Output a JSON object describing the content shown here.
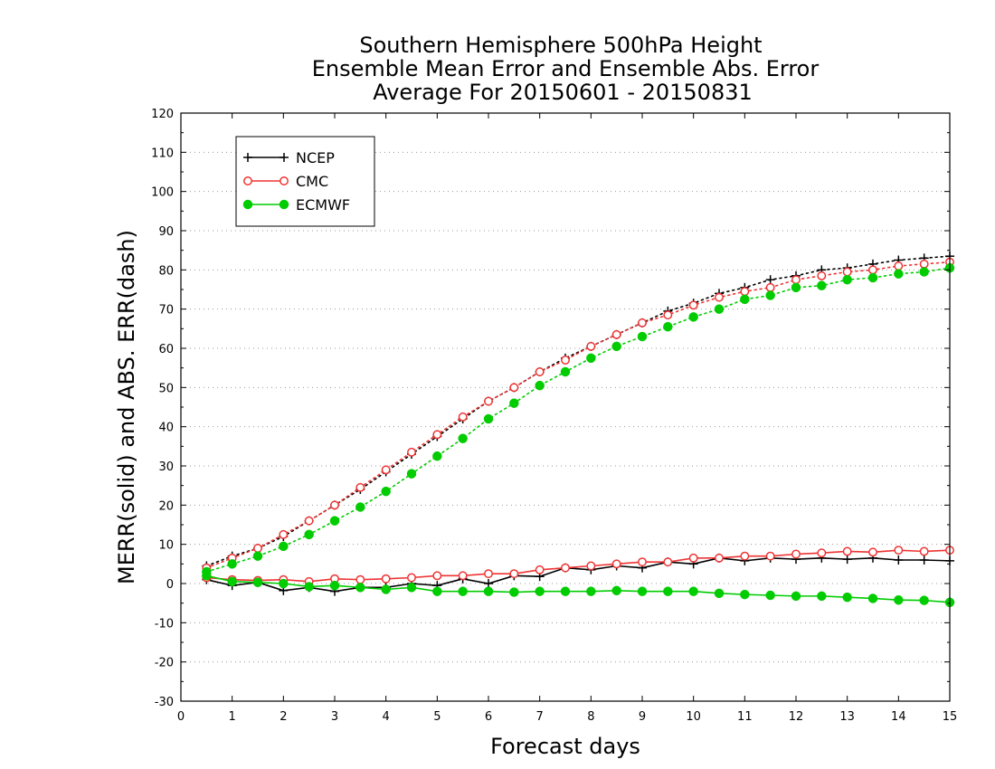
{
  "chart_data": {
    "type": "line",
    "title_lines": [
      "Southern Hemisphere 500hPa Height",
      "Ensemble Mean Error and Ensemble Abs. Error",
      "Average For 20150601 - 20150831"
    ],
    "xlabel": "Forecast days",
    "ylabel": "MERR(solid) and ABS. ERR(dash)",
    "xlim": [
      0,
      15
    ],
    "ylim": [
      -30,
      120
    ],
    "x_ticks": [
      "0",
      "1",
      "2",
      "3",
      "4",
      "5",
      "6",
      "7",
      "8",
      "9",
      "10",
      "11",
      "12",
      "13",
      "14",
      "15"
    ],
    "y_ticks": [
      "-30",
      "-20",
      "-10",
      "0",
      "10",
      "20",
      "30",
      "40",
      "50",
      "60",
      "70",
      "80",
      "90",
      "100",
      "110",
      "120"
    ],
    "grid": "horizontal dotted",
    "legend_position": "top-left",
    "x": [
      0.5,
      1,
      1.5,
      2,
      2.5,
      3,
      3.5,
      4,
      4.5,
      5,
      5.5,
      6,
      6.5,
      7,
      7.5,
      8,
      8.5,
      9,
      9.5,
      10,
      10.5,
      11,
      11.5,
      12,
      12.5,
      13,
      13.5,
      14,
      14.5,
      15
    ],
    "series": [
      {
        "name": "NCEP",
        "color": "#000000",
        "marker": "plus",
        "merr": [
          1.0,
          -0.5,
          0.3,
          -1.8,
          -1.0,
          -2.0,
          -1.0,
          -1.0,
          0.0,
          -0.5,
          1.2,
          0.0,
          2.0,
          1.8,
          4.0,
          3.5,
          4.5,
          4.0,
          5.5,
          5.0,
          6.5,
          5.8,
          6.5,
          6.2,
          6.5,
          6.2,
          6.5,
          6.0,
          6.0,
          5.8
        ],
        "abs_err": [
          4.5,
          7.0,
          9.0,
          12.0,
          16.0,
          20.0,
          24.0,
          28.5,
          33.0,
          37.5,
          42.0,
          46.5,
          50.0,
          54.0,
          57.5,
          60.5,
          63.5,
          66.5,
          69.5,
          71.5,
          74.0,
          75.5,
          77.5,
          78.5,
          80.0,
          80.5,
          81.5,
          82.5,
          83.0,
          83.5
        ]
      },
      {
        "name": "CMC",
        "color": "#ee3333",
        "marker": "open-circle",
        "merr": [
          1.5,
          1.0,
          0.8,
          1.0,
          0.5,
          1.2,
          1.0,
          1.2,
          1.5,
          2.0,
          2.0,
          2.5,
          2.5,
          3.5,
          4.0,
          4.5,
          5.0,
          5.5,
          5.5,
          6.5,
          6.5,
          7.0,
          7.0,
          7.5,
          7.8,
          8.2,
          8.0,
          8.5,
          8.2,
          8.5
        ],
        "abs_err": [
          4.0,
          6.5,
          9.0,
          12.5,
          16.0,
          20.0,
          24.5,
          29.0,
          33.5,
          38.0,
          42.5,
          46.5,
          50.0,
          54.0,
          57.0,
          60.5,
          63.5,
          66.5,
          68.5,
          71.0,
          73.0,
          74.5,
          75.5,
          77.5,
          78.5,
          79.5,
          80.0,
          81.0,
          81.5,
          82.0
        ]
      },
      {
        "name": "ECMWF",
        "color": "#00cc00",
        "marker": "filled-circle",
        "merr": [
          2.0,
          0.5,
          0.3,
          0.0,
          -0.8,
          -0.5,
          -1.0,
          -1.5,
          -1.0,
          -2.0,
          -2.0,
          -2.0,
          -2.2,
          -2.0,
          -2.0,
          -2.0,
          -1.8,
          -2.0,
          -2.0,
          -2.0,
          -2.5,
          -2.8,
          -3.0,
          -3.2,
          -3.2,
          -3.5,
          -3.8,
          -4.2,
          -4.3,
          -4.8
        ],
        "abs_err": [
          3.0,
          5.0,
          7.0,
          9.5,
          12.5,
          16.0,
          19.5,
          23.5,
          28.0,
          32.5,
          37.0,
          42.0,
          46.0,
          50.5,
          54.0,
          57.5,
          60.5,
          63.0,
          65.5,
          68.0,
          70.0,
          72.5,
          73.5,
          75.5,
          76.0,
          77.5,
          78.0,
          79.0,
          79.5,
          80.5
        ]
      }
    ]
  }
}
